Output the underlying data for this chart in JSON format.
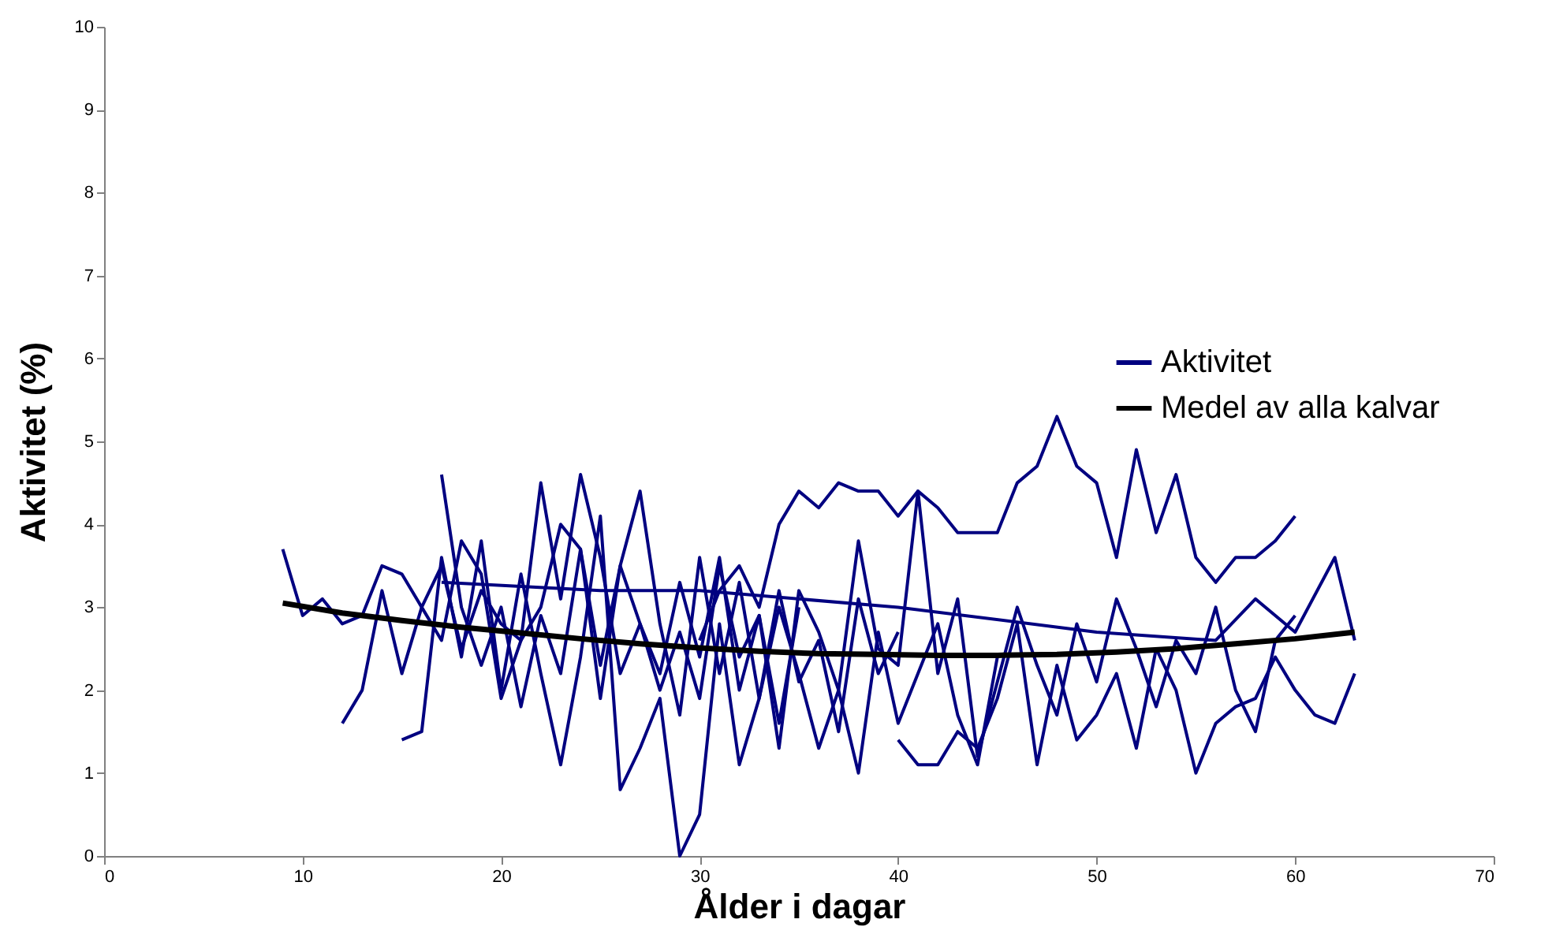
{
  "chart_data": {
    "type": "line",
    "xlabel": "Ålder i dagar",
    "ylabel": "Aktivitet (%)",
    "xlim": [
      0,
      70
    ],
    "xticks": [
      0,
      10,
      20,
      30,
      40,
      50,
      60,
      70
    ],
    "ylim": [
      0,
      10
    ],
    "yticks": [
      0,
      1,
      2,
      3,
      4,
      5,
      6,
      7,
      8,
      9,
      10
    ],
    "grid": false,
    "legend": "right",
    "marker": "none",
    "series": [
      {
        "name": "Aktivitet",
        "color": "#000080",
        "x": [
          9,
          10,
          11,
          12,
          13,
          14,
          15,
          16,
          17,
          18,
          19,
          20,
          21,
          22,
          23,
          24,
          25,
          26,
          27,
          28,
          29,
          30,
          31,
          32,
          33,
          34,
          35
        ],
        "values": [
          3.7,
          2.9,
          3.1,
          2.8,
          2.9,
          3.5,
          3.4,
          3.0,
          3.5,
          2.5,
          3.2,
          2.8,
          2.6,
          4.5,
          3.1,
          4.6,
          3.6,
          2.2,
          2.8,
          2.0,
          2.7,
          1.9,
          3.5,
          2.4,
          2.9,
          1.6,
          3.0
        ]
      },
      {
        "color": "#000080",
        "x": [
          12,
          13,
          14,
          15,
          16,
          17,
          18,
          19,
          20,
          21,
          22,
          23,
          24,
          25,
          26,
          27,
          28,
          29,
          30,
          31,
          32,
          33,
          34,
          35,
          36,
          37,
          38,
          39,
          40
        ],
        "values": [
          1.6,
          2.0,
          3.2,
          2.2,
          3.0,
          2.6,
          3.8,
          3.4,
          1.9,
          2.6,
          3.0,
          4.0,
          3.7,
          1.9,
          3.5,
          4.4,
          2.8,
          1.7,
          3.6,
          2.2,
          3.3,
          1.9,
          3.2,
          2.1,
          2.6,
          1.5,
          3.1,
          2.2,
          2.7
        ]
      },
      {
        "color": "#000080",
        "x": [
          15,
          16,
          17,
          18,
          19,
          20,
          21,
          22,
          23,
          24,
          25,
          26,
          27,
          28,
          29,
          30,
          31,
          32,
          33,
          34,
          35,
          36,
          37,
          38,
          39,
          40,
          41,
          42,
          43,
          44,
          45
        ],
        "values": [
          1.4,
          1.5,
          3.6,
          2.4,
          3.8,
          2.0,
          3.4,
          2.2,
          1.1,
          2.4,
          4.1,
          0.8,
          1.3,
          1.9,
          0,
          0.5,
          2.8,
          1.1,
          1.9,
          3.0,
          2.2,
          1.3,
          2.0,
          1.0,
          2.7,
          1.6,
          2.2,
          2.8,
          1.7,
          1.1,
          2.4
        ]
      },
      {
        "color": "#000080",
        "x": [
          17,
          18,
          19,
          20,
          21,
          22,
          23,
          24,
          25,
          26,
          27,
          28,
          29,
          30,
          31,
          32,
          33,
          34,
          35,
          36,
          37,
          38,
          39,
          40,
          41,
          42,
          43,
          44,
          45,
          46,
          47,
          48,
          49,
          50,
          51,
          52,
          53,
          54,
          55,
          56,
          57,
          58,
          59,
          60
        ],
        "values": [
          4.6,
          3.0,
          2.3,
          3.0,
          1.8,
          2.9,
          2.2,
          3.7,
          2.3,
          3.5,
          2.8,
          2.2,
          3.3,
          2.4,
          3.6,
          2.0,
          2.9,
          1.3,
          3.2,
          2.7,
          2.0,
          3.8,
          2.5,
          2.3,
          4.4,
          2.2,
          3.1,
          1.2,
          2.1,
          3.0,
          2.3,
          1.7,
          2.8,
          2.1,
          3.1,
          2.5,
          1.8,
          2.6,
          2.2,
          3.0,
          2.0,
          1.5,
          2.6,
          2.9
        ]
      },
      {
        "color": "#000080",
        "x": [
          30,
          31,
          32,
          33,
          34,
          35,
          36,
          37,
          38,
          39,
          40,
          41,
          42,
          43,
          44,
          45,
          46,
          47,
          48,
          49,
          50,
          51,
          52,
          53,
          54,
          55,
          56,
          57,
          58,
          59,
          60
        ],
        "values": [
          2.6,
          3.2,
          3.5,
          3.0,
          4.0,
          4.4,
          4.2,
          4.5,
          4.4,
          4.4,
          4.1,
          4.4,
          4.2,
          3.9,
          3.9,
          3.9,
          4.5,
          4.7,
          5.3,
          4.7,
          4.5,
          3.6,
          4.9,
          3.9,
          4.6,
          3.6,
          3.3,
          3.6,
          3.6,
          3.8,
          4.1
        ]
      },
      {
        "color": "#000080",
        "x": [
          40,
          41,
          42,
          43,
          44,
          45,
          46,
          47,
          48,
          49,
          50,
          51,
          52,
          53,
          54,
          55,
          56,
          57,
          58,
          59,
          60,
          61,
          62,
          63
        ],
        "values": [
          1.4,
          1.1,
          1.1,
          1.5,
          1.3,
          1.9,
          2.8,
          1.1,
          2.3,
          1.4,
          1.7,
          2.2,
          1.3,
          2.5,
          2.0,
          1.0,
          1.6,
          1.8,
          1.9,
          2.4,
          2.0,
          1.7,
          1.6,
          2.2
        ]
      },
      {
        "color": "#000080",
        "x": [
          17,
          25,
          30,
          40,
          50,
          56,
          58,
          60,
          62,
          63
        ],
        "values": [
          3.3,
          3.2,
          3.2,
          3.0,
          2.7,
          2.6,
          3.1,
          2.7,
          3.6,
          2.6
        ]
      },
      {
        "name": "Medel av alla kalvar",
        "color": "#000000",
        "x": [
          9,
          12,
          15,
          18,
          21,
          24,
          27,
          30,
          33,
          36,
          39,
          42,
          45,
          48,
          51,
          54,
          57,
          60,
          63
        ],
        "values": [
          3.05,
          2.93,
          2.84,
          2.76,
          2.69,
          2.62,
          2.56,
          2.51,
          2.47,
          2.44,
          2.43,
          2.42,
          2.42,
          2.43,
          2.46,
          2.5,
          2.56,
          2.62,
          2.7
        ]
      }
    ]
  }
}
